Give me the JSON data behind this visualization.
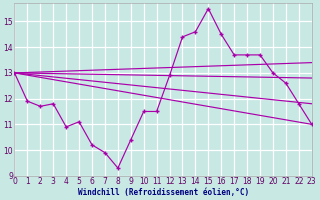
{
  "xlabel": "Windchill (Refroidissement éolien,°C)",
  "bg_color": "#c8e8e4",
  "line_color": "#aa00aa",
  "grid_color": "#ffffff",
  "xlim": [
    0,
    23
  ],
  "ylim": [
    9.0,
    15.7
  ],
  "yticks": [
    9,
    10,
    11,
    12,
    13,
    14,
    15
  ],
  "xticks": [
    0,
    1,
    2,
    3,
    4,
    5,
    6,
    7,
    8,
    9,
    10,
    11,
    12,
    13,
    14,
    15,
    16,
    17,
    18,
    19,
    20,
    21,
    22,
    23
  ],
  "main_x": [
    0,
    1,
    2,
    3,
    4,
    5,
    6,
    7,
    8,
    9,
    10,
    11,
    12,
    13,
    14,
    15,
    16,
    17,
    18,
    19,
    20,
    21,
    22,
    23
  ],
  "main_y": [
    13.0,
    11.9,
    11.7,
    11.8,
    10.9,
    11.1,
    10.2,
    9.9,
    9.3,
    10.4,
    11.5,
    11.5,
    12.9,
    14.4,
    14.6,
    15.5,
    14.5,
    13.7,
    13.7,
    13.7,
    13.0,
    12.6,
    11.8,
    11.0
  ],
  "trend_lines": [
    [
      0,
      23,
      13.0,
      11.0
    ],
    [
      0,
      23,
      13.0,
      11.8
    ],
    [
      0,
      23,
      13.0,
      12.8
    ],
    [
      0,
      23,
      13.0,
      13.4
    ]
  ]
}
